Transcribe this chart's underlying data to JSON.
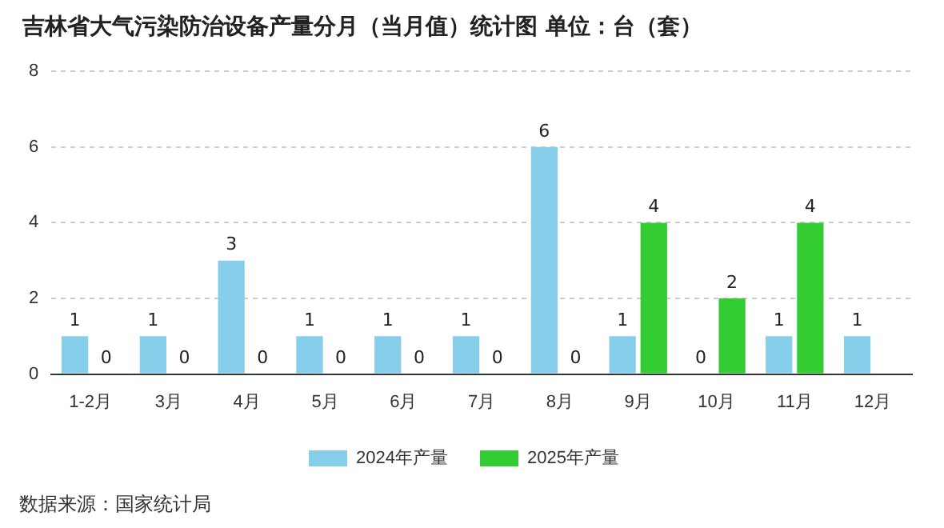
{
  "chart_data": {
    "type": "bar",
    "title": "吉林省大气污染防治设备产量分月（当月值）统计图 单位：台（套）",
    "categories": [
      "1-2月",
      "3月",
      "4月",
      "5月",
      "6月",
      "7月",
      "8月",
      "9月",
      "10月",
      "11月",
      "12月"
    ],
    "series": [
      {
        "name": "2024年产量",
        "color": "#87ceeb",
        "values": [
          1,
          1,
          3,
          1,
          1,
          1,
          6,
          1,
          0,
          1,
          1
        ]
      },
      {
        "name": "2025年产量",
        "color": "#33cc33",
        "values": [
          0,
          0,
          0,
          0,
          0,
          0,
          0,
          4,
          2,
          4,
          null
        ]
      }
    ],
    "ylim": [
      0,
      8
    ],
    "yticks": [
      0,
      2,
      4,
      6,
      8
    ],
    "grid": "y",
    "legend": "bottom",
    "data_labels": true,
    "annotations": [
      "数据来源：国家统计局"
    ]
  }
}
